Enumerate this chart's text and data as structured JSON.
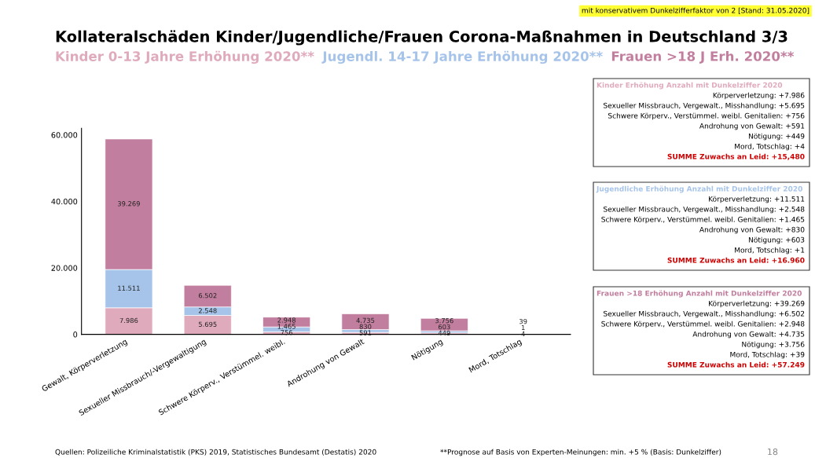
{
  "chart_data": {
    "type": "bar",
    "stacked": true,
    "title": "Kollateralschäden Kinder/Jugendliche/Frauen Corona-Maßnahmen in Deutschland 3/3",
    "categories": [
      "Gewalt, Körperverletzung",
      "Sexueller Missbrauch/-Vergewaltigung",
      "Schwere Körperv., Verstümmel. weibl.",
      "Androhung von Gewalt",
      "Nötigung",
      "Mord, Totschlag"
    ],
    "series": [
      {
        "name": "Kinder 0-13 Jahre Erhöhung 2020**",
        "color": "#e0aabd",
        "values": [
          7986,
          5695,
          756,
          591,
          449,
          4
        ],
        "value_labels": [
          "7.986",
          "5.695",
          "756",
          "591",
          "449",
          "4"
        ]
      },
      {
        "name": "Jugendl. 14-17 Jahre Erhöhung 2020**",
        "color": "#a6c4ea",
        "values": [
          11511,
          2548,
          1465,
          830,
          603,
          1
        ],
        "value_labels": [
          "11.511",
          "2.548",
          "1.465",
          "830",
          "603",
          "1"
        ]
      },
      {
        "name": "Frauen >18 J Erh. 2020**",
        "color": "#c27e9e",
        "values": [
          39269,
          6502,
          2948,
          4735,
          3756,
          39
        ],
        "value_labels": [
          "39.269",
          "6.502",
          "2.948",
          "4.735",
          "3.756",
          "39"
        ]
      }
    ],
    "ylim": [
      0,
      62000
    ],
    "yticks": [
      0,
      {
        "value": 20000,
        "label": "20.000"
      },
      {
        "value": 40000,
        "label": "40.000"
      },
      {
        "value": 60000,
        "label": "60.000"
      }
    ],
    "legend": "top",
    "grid": false,
    "annotations": [
      "mit konservativem Dunkelzifferfaktor von 2 [Stand: 31.05.2020]",
      "Kinder Erhöhung Anzahl mit Dunkelziffer 2020\nKörperverletzung: +7.986\nSexueller Missbrauch, Vergewalt., Misshandlung: +5.695\nSchwere Körperv., Verstümmel. weibl. Genitalien: +756\nAndrohung von Gewalt: +591\nNötigung: +449\nMord, Totschlag: +4\nSUMME Zuwachs an Leid: +15,480",
      "Jugendliche Erhöhung Anzahl mit Dunkelziffer 2020\nKörperverletzung: +11.511\nSexueller Missbrauch, Vergewalt., Misshandlung: +2.548\nSchwere Körperv., Verstümmel. weibl. Genitalien: +1.465\nAndrohung von Gewalt: +830\nNötigung: +603\nMord, Totschlag: +1\nSUMME Zuwachs an Leid: +16.960",
      "Frauen >18 Erhöhung Anzahl mit Dunkelziffer 2020\nKörperverletzung: +39.269\nSexueller Missbrauch, Vergewalt., Misshandlung: +6.502\nSchwere Körperv., Verstümmel. weibl. Genitalien: +2.948\nAndrohung von Gewalt: +4.735\nNötigung: +3.756\nMord, Totschlag: +39\nSUMME Zuwachs an Leid: +57.249",
      "Quellen: Polizeiliche Kriminalstatistik (PKS) 2019, Statistisches Bundesamt (Destatis) 2020",
      "**Prognose auf Basis von Experten-Meinungen: min. +5 % (Basis: Dunkelziffer)",
      "18"
    ]
  }
}
